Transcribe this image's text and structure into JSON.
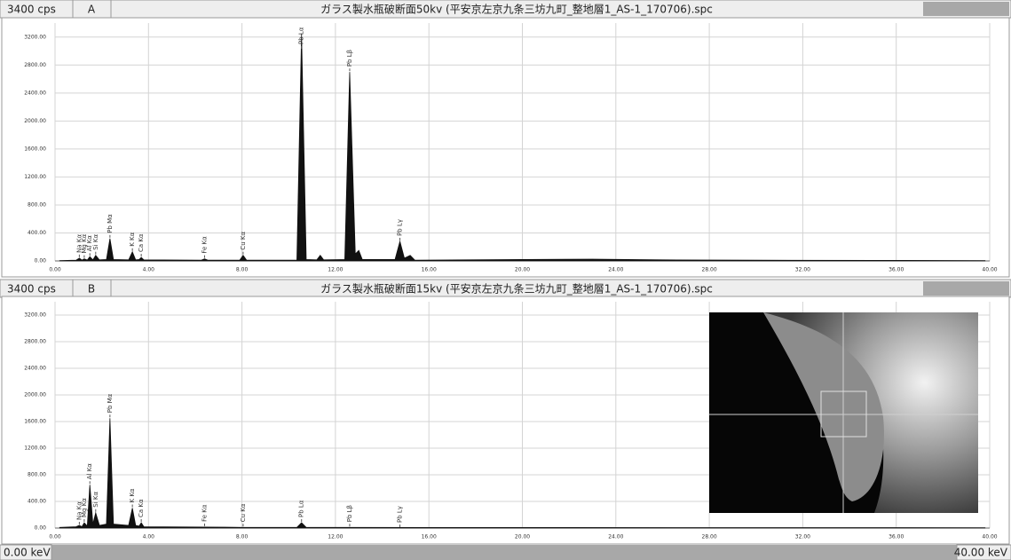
{
  "chart_data": [
    {
      "type": "area",
      "panel": "A",
      "scale_label": "3400 cps",
      "title": "ガラス製水瓶破断面50kv (平安京左京九条三坊九町_整地層1_AS-1_170706).spc",
      "xlim": [
        0,
        40
      ],
      "ylim": [
        0,
        3400
      ],
      "grid": true,
      "xticks": [
        {
          "value": 0,
          "label": "0.00"
        },
        {
          "value": 4,
          "label": "4.00"
        },
        {
          "value": 8,
          "label": "8.00"
        },
        {
          "value": 12,
          "label": "12.00"
        },
        {
          "value": 16,
          "label": "16.00"
        },
        {
          "value": 20,
          "label": "20.00"
        },
        {
          "value": 24,
          "label": "24.00"
        },
        {
          "value": 28,
          "label": "28.00"
        },
        {
          "value": 32,
          "label": "32.00"
        },
        {
          "value": 36,
          "label": "36.00"
        },
        {
          "value": 40,
          "label": "40.00"
        }
      ],
      "yticks": [
        {
          "value": 0,
          "label": "0.00"
        },
        {
          "value": 400,
          "label": "400.00"
        },
        {
          "value": 800,
          "label": "800.00"
        },
        {
          "value": 1200,
          "label": "1200.00"
        },
        {
          "value": 1600,
          "label": "1600.00"
        },
        {
          "value": 2000,
          "label": "2000.00"
        },
        {
          "value": 2400,
          "label": "2400.00"
        },
        {
          "value": 2800,
          "label": "2800.00"
        },
        {
          "value": 3200,
          "label": "3200.00"
        }
      ],
      "series": [
        {
          "color": "#111111",
          "x": [
            0.2,
            0.9,
            1.04,
            1.15,
            1.25,
            1.38,
            1.49,
            1.62,
            1.74,
            1.9,
            2.2,
            2.35,
            2.5,
            3.15,
            3.31,
            3.45,
            3.6,
            3.69,
            3.8,
            6.25,
            6.4,
            6.55,
            7.9,
            8.05,
            8.2,
            10.35,
            10.55,
            10.75,
            11.2,
            11.35,
            11.5,
            12.4,
            12.61,
            12.85,
            13.0,
            13.15,
            14.55,
            14.76,
            14.95,
            15.2,
            15.4,
            20,
            23,
            26,
            30,
            35,
            39.8
          ],
          "values": [
            5,
            10,
            40,
            12,
            30,
            12,
            60,
            15,
            80,
            15,
            20,
            320,
            20,
            15,
            130,
            15,
            20,
            50,
            15,
            10,
            30,
            10,
            10,
            80,
            10,
            10,
            3250,
            20,
            15,
            80,
            15,
            20,
            2700,
            100,
            150,
            20,
            20,
            280,
            40,
            80,
            10,
            20,
            25,
            15,
            10,
            8,
            5
          ]
        }
      ],
      "annotations": [
        {
          "text": "Na Kα",
          "x": 1.04
        },
        {
          "text": "Mg Kα",
          "x": 1.25
        },
        {
          "text": "Al Kα",
          "x": 1.49
        },
        {
          "text": "Si Kα",
          "x": 1.74
        },
        {
          "text": "Pb Mα",
          "x": 2.35
        },
        {
          "text": "K Kα",
          "x": 3.31
        },
        {
          "text": "Ca Kα",
          "x": 3.69
        },
        {
          "text": "Fe Kα",
          "x": 6.4
        },
        {
          "text": "Cu Kα",
          "x": 8.05
        },
        {
          "text": "Pb Lα",
          "x": 10.55
        },
        {
          "text": "Pb Lβ",
          "x": 12.61
        },
        {
          "text": "Pb Lγ",
          "x": 14.76
        }
      ]
    },
    {
      "type": "area",
      "panel": "B",
      "scale_label": "3400 cps",
      "title": "ガラス製水瓶破断面15kv (平安京左京九条三坊九町_整地層1_AS-1_170706).spc",
      "xlim": [
        0,
        40
      ],
      "ylim": [
        0,
        3400
      ],
      "grid": true,
      "xticks": [
        {
          "value": 0,
          "label": "0.00"
        },
        {
          "value": 4,
          "label": "4.00"
        },
        {
          "value": 8,
          "label": "8.00"
        },
        {
          "value": 12,
          "label": "12.00"
        },
        {
          "value": 16,
          "label": "16.00"
        },
        {
          "value": 20,
          "label": "20.00"
        },
        {
          "value": 24,
          "label": "24.00"
        },
        {
          "value": 28,
          "label": "28.00"
        },
        {
          "value": 32,
          "label": "32.00"
        },
        {
          "value": 36,
          "label": "36.00"
        },
        {
          "value": 40,
          "label": "40.00"
        }
      ],
      "yticks": [
        {
          "value": 0,
          "label": "0.00"
        },
        {
          "value": 400,
          "label": "400.00"
        },
        {
          "value": 800,
          "label": "800.00"
        },
        {
          "value": 1200,
          "label": "1200.00"
        },
        {
          "value": 1600,
          "label": "1600.00"
        },
        {
          "value": 2000,
          "label": "2000.00"
        },
        {
          "value": 2400,
          "label": "2400.00"
        },
        {
          "value": 2800,
          "label": "2800.00"
        },
        {
          "value": 3200,
          "label": "3200.00"
        }
      ],
      "series": [
        {
          "color": "#111111",
          "x": [
            0.2,
            0.9,
            1.04,
            1.15,
            1.25,
            1.38,
            1.49,
            1.62,
            1.74,
            1.9,
            2.2,
            2.35,
            2.5,
            3.15,
            3.31,
            3.45,
            3.6,
            3.69,
            3.8,
            6.4,
            8.05,
            10.35,
            10.55,
            10.75,
            12.61,
            20,
            39.8
          ],
          "values": [
            10,
            20,
            40,
            20,
            80,
            30,
            650,
            60,
            230,
            40,
            60,
            1650,
            60,
            40,
            300,
            40,
            30,
            80,
            20,
            15,
            10,
            10,
            80,
            10,
            10,
            8,
            5
          ]
        }
      ],
      "annotations": [
        {
          "text": "Na Kα",
          "x": 1.04
        },
        {
          "text": "Mg Kα",
          "x": 1.25
        },
        {
          "text": "Al Kα",
          "x": 1.49
        },
        {
          "text": "Si Kα",
          "x": 1.74
        },
        {
          "text": "Pb Mα",
          "x": 2.35
        },
        {
          "text": "K Kα",
          "x": 3.31
        },
        {
          "text": "Ca Kα",
          "x": 3.69
        },
        {
          "text": "Fe Kα",
          "x": 6.4
        },
        {
          "text": "Cu Kα",
          "x": 8.05
        },
        {
          "text": "Pb Lα",
          "x": 10.55
        },
        {
          "text": "Pb Lβ",
          "x": 12.61
        },
        {
          "text": "Pb Lγ",
          "x": 14.76
        }
      ]
    }
  ],
  "footer": {
    "left": "0.00 keV",
    "right": "40.00 keV"
  }
}
